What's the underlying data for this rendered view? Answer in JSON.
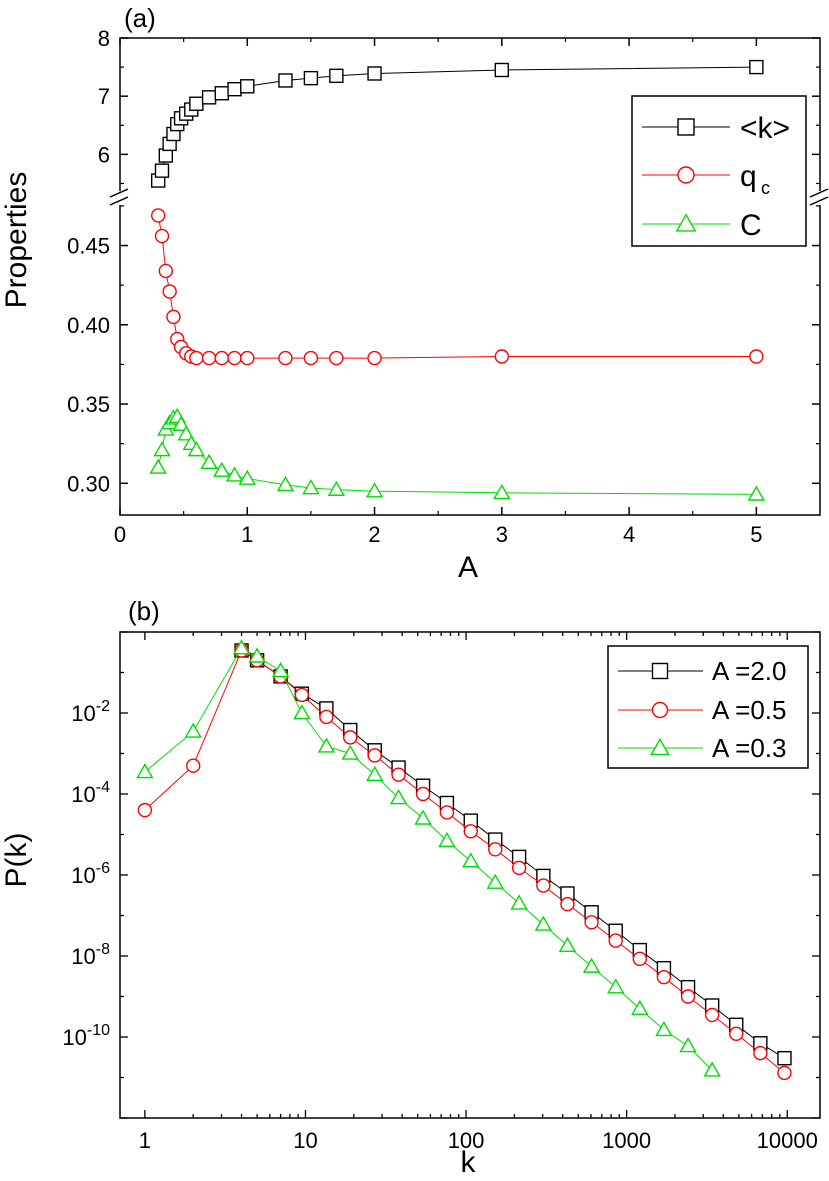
{
  "chart_data": [
    {
      "panel_label": "(a)",
      "type": "line",
      "xlabel": "A",
      "ylabel": "Properties",
      "xlim": [
        0,
        5.5
      ],
      "xticks": [
        0,
        1,
        2,
        3,
        4,
        5
      ],
      "upper_axis": {
        "ylim": [
          5.25,
          8.0
        ],
        "yticks": [
          6,
          7,
          8
        ]
      },
      "lower_axis": {
        "ylim": [
          0.28,
          0.48
        ],
        "yticks": [
          0.3,
          0.35,
          0.4,
          0.45
        ]
      },
      "legend_position": "top-right",
      "series": [
        {
          "name": "<k>",
          "subscript": "",
          "axis": "upper",
          "color": "#000000",
          "marker": "square",
          "x": [
            0.3,
            0.33,
            0.36,
            0.39,
            0.42,
            0.45,
            0.48,
            0.52,
            0.56,
            0.6,
            0.7,
            0.8,
            0.9,
            1.0,
            1.3,
            1.5,
            1.7,
            2.0,
            3.0,
            5.0
          ],
          "y": [
            5.55,
            5.72,
            5.98,
            6.18,
            6.35,
            6.52,
            6.62,
            6.7,
            6.77,
            6.87,
            6.98,
            7.05,
            7.12,
            7.17,
            7.27,
            7.31,
            7.35,
            7.39,
            7.45,
            7.5
          ]
        },
        {
          "name": "q",
          "subscript": "c",
          "axis": "lower",
          "color": "#ff0000",
          "marker": "circle",
          "x": [
            0.3,
            0.33,
            0.36,
            0.39,
            0.42,
            0.45,
            0.48,
            0.52,
            0.56,
            0.6,
            0.7,
            0.8,
            0.9,
            1.0,
            1.3,
            1.5,
            1.7,
            2.0,
            3.0,
            5.0
          ],
          "y": [
            0.469,
            0.456,
            0.434,
            0.421,
            0.405,
            0.391,
            0.386,
            0.382,
            0.38,
            0.379,
            0.379,
            0.379,
            0.379,
            0.379,
            0.379,
            0.379,
            0.379,
            0.379,
            0.38,
            0.38
          ]
        },
        {
          "name": "C",
          "subscript": "",
          "axis": "lower",
          "color": "#00dd00",
          "marker": "triangle",
          "x": [
            0.3,
            0.33,
            0.36,
            0.39,
            0.42,
            0.45,
            0.48,
            0.52,
            0.56,
            0.6,
            0.7,
            0.8,
            0.9,
            1.0,
            1.3,
            1.5,
            1.7,
            2.0,
            3.0,
            5.0
          ],
          "y": [
            0.31,
            0.321,
            0.334,
            0.338,
            0.341,
            0.342,
            0.337,
            0.331,
            0.325,
            0.321,
            0.313,
            0.308,
            0.305,
            0.303,
            0.299,
            0.297,
            0.296,
            0.295,
            0.294,
            0.293
          ]
        }
      ]
    },
    {
      "panel_label": "(b)",
      "type": "line",
      "xlabel": "k",
      "ylabel": "P(k)",
      "xscale": "log",
      "yscale": "log",
      "xlim": [
        0.7,
        16000
      ],
      "ylim": [
        1e-12,
        1
      ],
      "xticks": [
        1,
        10,
        100,
        1000,
        10000
      ],
      "xtick_labels": [
        "1",
        "10",
        "100",
        "1000",
        "10000"
      ],
      "yticks": [
        1e-10,
        1e-08,
        1e-06,
        0.0001,
        0.01
      ],
      "ytick_labels": [
        {
          "base": "10",
          "exp": "-10"
        },
        {
          "base": "10",
          "exp": "-8"
        },
        {
          "base": "10",
          "exp": "-6"
        },
        {
          "base": "10",
          "exp": "-4"
        },
        {
          "base": "10",
          "exp": "-2"
        }
      ],
      "legend_position": "top-right",
      "series": [
        {
          "name": "A =2.0",
          "color": "#000000",
          "marker": "square",
          "x": [
            4,
            5,
            7,
            9.5,
            13.5,
            19,
            27,
            38,
            54,
            76,
            107,
            152,
            214,
            303,
            428,
            605,
            855,
            1208,
            1707,
            2412,
            3408,
            4815,
            6803,
            9612
          ],
          "y": [
            0.35,
            0.2,
            0.08,
            0.03,
            0.013,
            0.0038,
            0.0012,
            0.00045,
            0.00016,
            6e-05,
            2.2e-05,
            7.5e-06,
            2.8e-06,
            9.5e-07,
            3.5e-07,
            1.2e-07,
            4.2e-08,
            1.4e-08,
            5e-09,
            1.7e-09,
            6e-10,
            2e-10,
            7e-11,
            3e-11
          ]
        },
        {
          "name": "A =0.5",
          "color": "#ff0000",
          "marker": "circle",
          "x": [
            1,
            2,
            4,
            5,
            7,
            9.5,
            13.5,
            19,
            27,
            38,
            54,
            76,
            107,
            152,
            214,
            303,
            428,
            605,
            855,
            1208,
            1707,
            2412,
            3408,
            4815,
            6803,
            9612
          ],
          "y": [
            4e-05,
            0.0005,
            0.35,
            0.2,
            0.08,
            0.028,
            0.008,
            0.0025,
            0.0009,
            0.0003,
            0.0001,
            3.5e-05,
            1.2e-05,
            4.3e-06,
            1.5e-06,
            5.5e-07,
            1.9e-07,
            6.8e-08,
            2.4e-08,
            8.5e-09,
            3e-09,
            1e-09,
            3.5e-10,
            1.2e-10,
            4e-11,
            1.3e-11
          ]
        },
        {
          "name": "A =0.3",
          "color": "#00dd00",
          "marker": "triangle",
          "x": [
            1,
            2,
            4,
            5,
            7,
            9.5,
            13.5,
            19,
            27,
            38,
            54,
            76,
            107,
            152,
            214,
            303,
            428,
            605,
            855,
            1208,
            1707,
            2412,
            3408
          ],
          "y": [
            0.00035,
            0.0035,
            0.4,
            0.25,
            0.11,
            0.01,
            0.0015,
            0.001,
            0.0003,
            8e-05,
            2.5e-05,
            7e-06,
            2.2e-06,
            6.5e-07,
            2e-07,
            6e-08,
            1.8e-08,
            5.5e-09,
            1.7e-09,
            5e-10,
            1.5e-10,
            6e-11,
            1.5e-11
          ]
        }
      ]
    }
  ]
}
